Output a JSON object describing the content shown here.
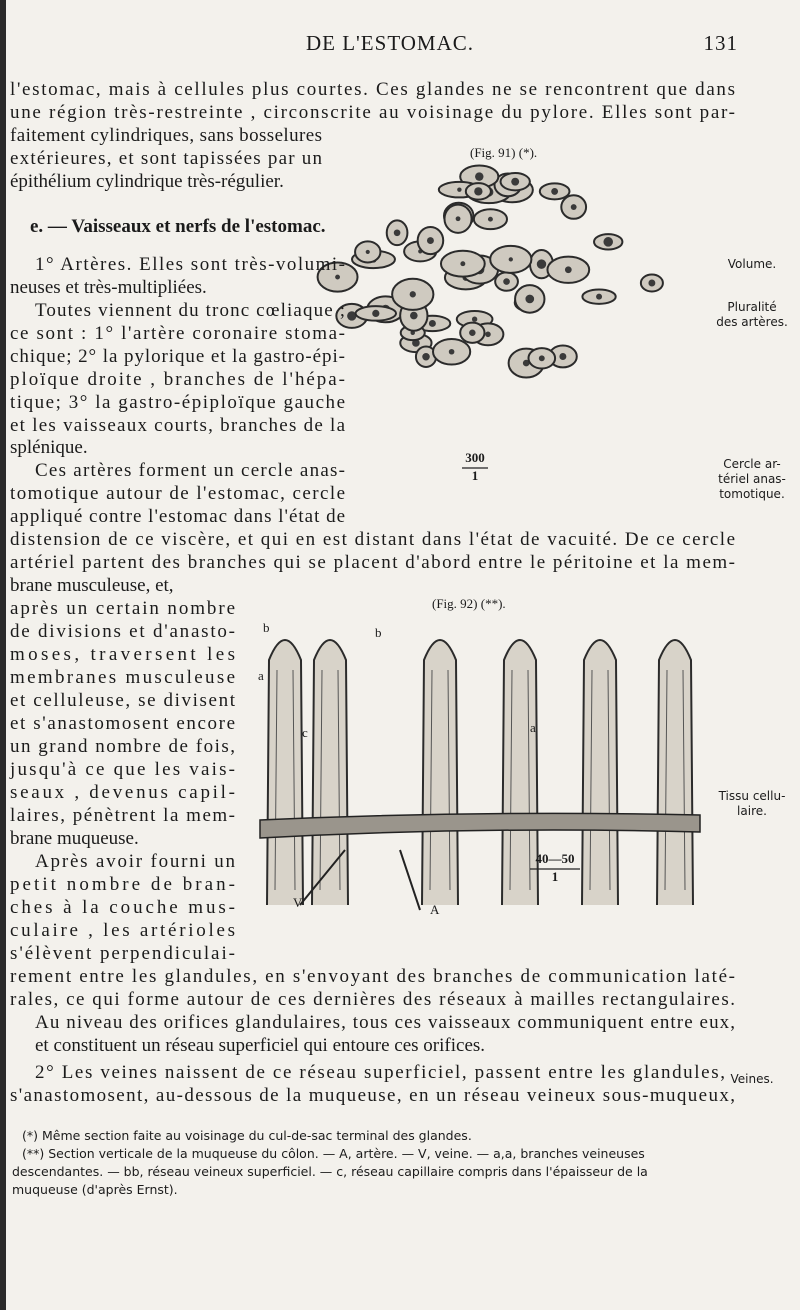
{
  "header": {
    "title": "DE L'ESTOMAC.",
    "page": "131"
  },
  "body": [
    "l'estomac, mais à cellules plus courtes. Ces glandes ne se rencontrent que dans",
    "une région très-restreinte , circonscrite au voisinage du pylore. Elles sont par-",
    "faitement cylindriques, sans bosselures",
    "extérieures, et sont tapissées par un",
    "épithélium cylindrique très-régulier.",
    "e. — Vaisseaux et nerfs de l'estomac.",
    "1° Artères. Elles sont très-volumi-",
    "neuses et très-multipliées.",
    "Toutes viennent du tronc cœliaque ;",
    "ce sont : 1° l'artère coronaire stoma-",
    "chique; 2° la pylorique et la gastro-épi-",
    "ploïque droite , branches de l'hépa-",
    "tique; 3° la gastro-épiploïque gauche",
    "et les vaisseaux courts, branches de la",
    "splénique.",
    "Ces artères forment un cercle anas-",
    "tomotique autour de l'estomac, cercle",
    "appliqué contre l'estomac dans l'état de",
    "distension de ce viscère, et qui en est distant dans l'état de vacuité. De ce cercle",
    "artériel partent des branches qui se placent d'abord entre le péritoine et la mem-",
    "brane musculeuse, et,",
    "après un certain nombre",
    "de divisions et d'anasto-",
    "moses, traversent les",
    "membranes musculeuse",
    "et celluleuse, se divisent",
    "et s'anastomosent encore",
    "un grand nombre de fois,",
    "jusqu'à ce que les vais-",
    "seaux , devenus capil-",
    "laires, pénètrent la mem-",
    "brane muqueuse.",
    "Après avoir fourni un",
    "petit nombre de bran-",
    "ches à la couche mus-",
    "culaire , les artérioles",
    "s'élèvent perpendiculai-",
    "rement entre les glandules, en s'envoyant des branches de communication laté-",
    "rales, ce qui forme autour de ces dernières des réseaux à mailles rectangulaires.",
    "Au niveau des orifices glandulaires, tous ces vaisseaux communiquent entre eux,",
    "et constituent un réseau superficiel qui entoure ces orifices.",
    "2° Les veines naissent de ce réseau superficiel, passent entre les glandules,",
    "s'anastomosent, au-dessous de la muqueuse, en un réseau veineux sous-muqueux,"
  ],
  "margin_notes": [
    [
      "Volume."
    ],
    [
      "Pluralité",
      "des artères."
    ],
    [
      "Cercle ar-",
      "tériel anas-",
      "tomotique."
    ],
    [
      "Tissu cellu-",
      "laire."
    ],
    [
      "Veines."
    ]
  ],
  "figures": [
    {
      "caption": "(Fig. 91) (*).",
      "scale": {
        "num": "300",
        "den": "1"
      }
    },
    {
      "caption": "(Fig. 92) (**).",
      "scale": {
        "num": "40—50",
        "den": "1"
      },
      "labels": [
        "b",
        "b",
        "a",
        "c",
        "a",
        "V",
        "A"
      ]
    }
  ],
  "footnotes": [
    "(*) Même section faite au voisinage du cul-de-sac terminal des glandes.",
    "(**) Section verticale de la muqueuse du côlon. — A, artère. — V, veine. — a,a, branches veineuses",
    "descendantes. — bb, réseau veineux superficiel. — c, réseau capillaire compris dans l'épaisseur de la",
    "muqueuse (d'après Ernst)."
  ]
}
